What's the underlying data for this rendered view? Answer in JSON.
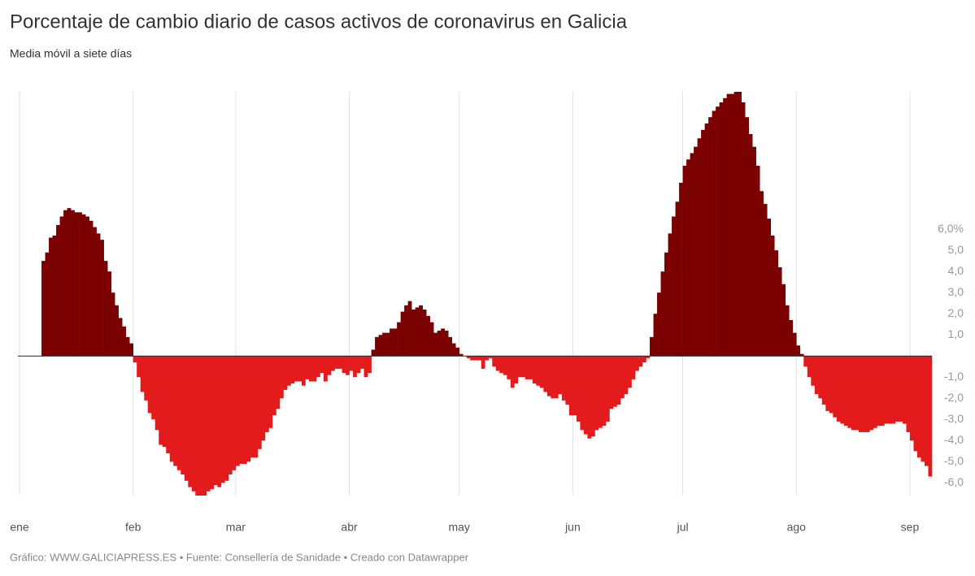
{
  "chart_data": {
    "type": "bar",
    "title": "Porcentaje de cambio diario de casos activos de coronavirus en Galicia",
    "subtitle": "Media móvil a siete días",
    "footer": "Gráfico: WWW.GALICIAPRESS.ES • Fuente: Consellería de Sanidade • Creado con Datawrapper",
    "color_positive": "#7b0000",
    "color_negative": "#e31b1c",
    "xlim": [
      1,
      250
    ],
    "xticks": [
      {
        "value": 1,
        "label": "ene"
      },
      {
        "value": 32,
        "label": "feb"
      },
      {
        "value": 60,
        "label": "mar"
      },
      {
        "value": 91,
        "label": "abr"
      },
      {
        "value": 121,
        "label": "may"
      },
      {
        "value": 152,
        "label": "jun"
      },
      {
        "value": 182,
        "label": "jul"
      },
      {
        "value": 213,
        "label": "ago"
      },
      {
        "value": 244,
        "label": "sep"
      }
    ],
    "ylim": [
      -6.6,
      12.5
    ],
    "yticks": [
      {
        "value": 6,
        "label": "6,0%"
      },
      {
        "value": 5,
        "label": "5,0"
      },
      {
        "value": 4,
        "label": "4,0"
      },
      {
        "value": 3,
        "label": "3,0"
      },
      {
        "value": 2,
        "label": "2,0"
      },
      {
        "value": 1,
        "label": "1,0"
      },
      {
        "value": -1,
        "label": "-1,0"
      },
      {
        "value": -2,
        "label": "-2,0"
      },
      {
        "value": -3,
        "label": "-3,0"
      },
      {
        "value": -4,
        "label": "-4,0"
      },
      {
        "value": -5,
        "label": "-5,0"
      },
      {
        "value": -6,
        "label": "-6,0"
      }
    ],
    "x": [
      7,
      8,
      9,
      10,
      11,
      12,
      13,
      14,
      15,
      16,
      17,
      18,
      19,
      20,
      21,
      22,
      23,
      24,
      25,
      26,
      27,
      28,
      29,
      30,
      31,
      32,
      33,
      34,
      35,
      36,
      37,
      38,
      39,
      40,
      41,
      42,
      43,
      44,
      45,
      46,
      47,
      48,
      49,
      50,
      51,
      52,
      53,
      54,
      55,
      56,
      57,
      58,
      59,
      60,
      61,
      62,
      63,
      64,
      65,
      66,
      67,
      68,
      69,
      70,
      71,
      72,
      73,
      74,
      75,
      76,
      77,
      78,
      79,
      80,
      81,
      82,
      83,
      84,
      85,
      86,
      87,
      88,
      89,
      90,
      91,
      92,
      93,
      94,
      95,
      96,
      97,
      98,
      99,
      100,
      101,
      102,
      103,
      104,
      105,
      106,
      107,
      108,
      109,
      110,
      111,
      112,
      113,
      114,
      115,
      116,
      117,
      118,
      119,
      120,
      121,
      122,
      123,
      124,
      125,
      126,
      127,
      128,
      129,
      130,
      131,
      132,
      133,
      134,
      135,
      136,
      137,
      138,
      139,
      140,
      141,
      142,
      143,
      144,
      145,
      146,
      147,
      148,
      149,
      150,
      151,
      152,
      153,
      154,
      155,
      156,
      157,
      158,
      159,
      160,
      161,
      162,
      163,
      164,
      165,
      166,
      167,
      168,
      169,
      170,
      171,
      172,
      173,
      174,
      175,
      176,
      177,
      178,
      179,
      180,
      181,
      182,
      183,
      184,
      185,
      186,
      187,
      188,
      189,
      190,
      191,
      192,
      193,
      194,
      195,
      196,
      197,
      198,
      199,
      200,
      201,
      202,
      203,
      204,
      205,
      206,
      207,
      208,
      209,
      210,
      211,
      212,
      213,
      214,
      215,
      216,
      217,
      218,
      219,
      220,
      221,
      222,
      223,
      224,
      225,
      226,
      227,
      228,
      229,
      230,
      231,
      232,
      233,
      234,
      235,
      236,
      237,
      238,
      239,
      240,
      241,
      242,
      243,
      244,
      245,
      246,
      247,
      248,
      249
    ],
    "values": [
      4.5,
      4.9,
      5.6,
      5.7,
      6.2,
      6.6,
      6.9,
      7.0,
      6.9,
      6.8,
      6.8,
      6.7,
      6.6,
      6.4,
      6.1,
      5.8,
      5.5,
      4.5,
      4.0,
      3.0,
      2.4,
      1.8,
      1.4,
      0.9,
      0.6,
      -0.3,
      -1.0,
      -1.7,
      -2.1,
      -2.7,
      -3.0,
      -3.5,
      -4.2,
      -4.3,
      -4.6,
      -5.0,
      -5.2,
      -5.4,
      -5.6,
      -5.9,
      -6.2,
      -6.4,
      -6.6,
      -6.6,
      -6.6,
      -6.4,
      -6.3,
      -6.1,
      -6.2,
      -6.0,
      -5.9,
      -5.6,
      -5.4,
      -5.2,
      -5.1,
      -5.1,
      -5.0,
      -4.8,
      -4.8,
      -4.4,
      -4.0,
      -3.6,
      -3.4,
      -2.8,
      -2.5,
      -2.0,
      -1.6,
      -1.4,
      -1.3,
      -1.2,
      -1.2,
      -1.4,
      -1.1,
      -1.2,
      -1.2,
      -1.0,
      -0.8,
      -1.2,
      -0.9,
      -0.7,
      -0.6,
      -0.6,
      -0.8,
      -0.9,
      -0.7,
      -1.0,
      -0.8,
      -0.6,
      -1.0,
      -0.8,
      0.3,
      0.9,
      1.0,
      1.1,
      1.1,
      1.3,
      1.3,
      1.6,
      2.1,
      2.4,
      2.6,
      2.2,
      2.3,
      2.4,
      2.2,
      1.9,
      1.6,
      1.1,
      1.2,
      1.3,
      1.2,
      0.9,
      0.6,
      0.4,
      0.1,
      0.0,
      -0.1,
      -0.2,
      -0.2,
      -0.2,
      -0.6,
      -0.2,
      -0.1,
      -0.5,
      -0.7,
      -0.8,
      -0.9,
      -1.1,
      -1.5,
      -1.3,
      -1.0,
      -1.0,
      -1.1,
      -1.1,
      -1.3,
      -1.4,
      -1.5,
      -1.7,
      -1.9,
      -2.0,
      -2.0,
      -1.8,
      -2.1,
      -2.3,
      -2.8,
      -2.8,
      -3.1,
      -3.5,
      -3.7,
      -3.9,
      -3.8,
      -3.5,
      -3.4,
      -3.3,
      -3.1,
      -2.5,
      -2.4,
      -2.3,
      -2.0,
      -1.8,
      -1.5,
      -1.1,
      -0.7,
      -0.5,
      -0.3,
      -0.1,
      0.9,
      2.0,
      3.0,
      4.0,
      4.9,
      5.8,
      6.6,
      7.3,
      8.2,
      9.0,
      9.3,
      9.6,
      9.9,
      10.3,
      10.7,
      11.0,
      11.3,
      11.6,
      11.8,
      12.0,
      12.2,
      12.4,
      12.4,
      12.5,
      12.5,
      12.0,
      11.3,
      10.5,
      9.9,
      9.0,
      7.8,
      7.2,
      6.5,
      5.7,
      5.0,
      4.2,
      3.4,
      2.4,
      1.7,
      1.1,
      0.5,
      0.1,
      -0.5,
      -1.0,
      -1.4,
      -1.8,
      -2.0,
      -2.3,
      -2.6,
      -2.7,
      -2.9,
      -3.1,
      -3.2,
      -3.3,
      -3.4,
      -3.5,
      -3.5,
      -3.6,
      -3.6,
      -3.6,
      -3.5,
      -3.4,
      -3.3,
      -3.3,
      -3.2,
      -3.2,
      -3.2,
      -3.1,
      -3.1,
      -3.2,
      -3.6,
      -4.0,
      -4.5,
      -4.8,
      -5.0,
      -5.2,
      -5.7
    ]
  }
}
